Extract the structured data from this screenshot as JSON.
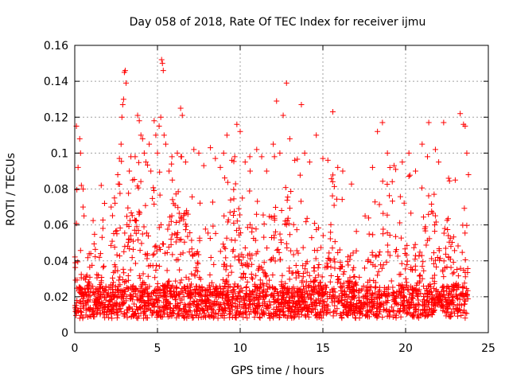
{
  "chart_data": {
    "type": "scatter",
    "title": "Day 058 of 2018, Rate Of TEC Index for receiver ijmu",
    "xlabel": "GPS time / hours",
    "ylabel": "ROTI / TECUs",
    "xlim": [
      0,
      25
    ],
    "ylim": [
      0,
      0.16
    ],
    "xticks": [
      0,
      5,
      10,
      15,
      20,
      25
    ],
    "xtick_labels": [
      "0",
      "5",
      "10",
      "15",
      "20",
      "25"
    ],
    "yticks": [
      0,
      0.02,
      0.04,
      0.06,
      0.08,
      0.1,
      0.12,
      0.14,
      0.16
    ],
    "ytick_labels": [
      "0",
      "0.02",
      "0.04",
      "0.06",
      "0.08",
      "0.1",
      "0.12",
      "0.14",
      "0.16"
    ],
    "grid": true,
    "marker": "+",
    "color": "#ff0000",
    "x_data_range": [
      0,
      23.8
    ],
    "series": [
      {
        "name": "ROTI",
        "points": [
          [
            0.1,
            0.115
          ],
          [
            0.3,
            0.108
          ],
          [
            0.35,
            0.1
          ],
          [
            0.2,
            0.092
          ],
          [
            0.4,
            0.082
          ],
          [
            0.5,
            0.07
          ],
          [
            1.6,
            0.082
          ],
          [
            1.8,
            0.072
          ],
          [
            2.2,
            0.07
          ],
          [
            2.4,
            0.075
          ],
          [
            2.6,
            0.088
          ],
          [
            2.7,
            0.097
          ],
          [
            2.8,
            0.105
          ],
          [
            2.85,
            0.12
          ],
          [
            2.9,
            0.127
          ],
          [
            2.95,
            0.13
          ],
          [
            3.0,
            0.145
          ],
          [
            3.05,
            0.146
          ],
          [
            3.1,
            0.139
          ],
          [
            3.3,
            0.09
          ],
          [
            3.5,
            0.085
          ],
          [
            3.8,
            0.121
          ],
          [
            3.9,
            0.118
          ],
          [
            4.0,
            0.11
          ],
          [
            4.1,
            0.108
          ],
          [
            4.2,
            0.1
          ],
          [
            4.3,
            0.095
          ],
          [
            4.5,
            0.105
          ],
          [
            4.6,
            0.09
          ],
          [
            4.8,
            0.118
          ],
          [
            4.9,
            0.11
          ],
          [
            5.0,
            0.1
          ],
          [
            5.1,
            0.115
          ],
          [
            5.2,
            0.12
          ],
          [
            5.25,
            0.152
          ],
          [
            5.3,
            0.15
          ],
          [
            5.35,
            0.146
          ],
          [
            5.4,
            0.11
          ],
          [
            5.5,
            0.105
          ],
          [
            5.7,
            0.09
          ],
          [
            5.9,
            0.085
          ],
          [
            6.2,
            0.1
          ],
          [
            6.4,
            0.125
          ],
          [
            6.5,
            0.121
          ],
          [
            6.7,
            0.095
          ],
          [
            7.2,
            0.102
          ],
          [
            7.5,
            0.1
          ],
          [
            7.8,
            0.093
          ],
          [
            8.2,
            0.103
          ],
          [
            8.5,
            0.097
          ],
          [
            8.8,
            0.092
          ],
          [
            9.0,
            0.1
          ],
          [
            9.2,
            0.11
          ],
          [
            9.5,
            0.096
          ],
          [
            9.8,
            0.116
          ],
          [
            10.0,
            0.112
          ],
          [
            10.3,
            0.095
          ],
          [
            10.6,
            0.09
          ],
          [
            11.0,
            0.102
          ],
          [
            11.3,
            0.098
          ],
          [
            11.6,
            0.09
          ],
          [
            12.0,
            0.105
          ],
          [
            12.2,
            0.129
          ],
          [
            12.4,
            0.1
          ],
          [
            12.6,
            0.121
          ],
          [
            12.8,
            0.139
          ],
          [
            13.0,
            0.108
          ],
          [
            13.3,
            0.096
          ],
          [
            13.7,
            0.127
          ],
          [
            13.9,
            0.1
          ],
          [
            14.2,
            0.095
          ],
          [
            14.6,
            0.11
          ],
          [
            15.0,
            0.097
          ],
          [
            15.3,
            0.096
          ],
          [
            15.6,
            0.123
          ],
          [
            15.9,
            0.092
          ],
          [
            16.2,
            0.09
          ],
          [
            18.0,
            0.092
          ],
          [
            18.3,
            0.112
          ],
          [
            18.6,
            0.117
          ],
          [
            18.9,
            0.1
          ],
          [
            19.3,
            0.093
          ],
          [
            19.8,
            0.095
          ],
          [
            20.2,
            0.1
          ],
          [
            20.6,
            0.09
          ],
          [
            21.0,
            0.105
          ],
          [
            21.4,
            0.117
          ],
          [
            21.8,
            0.102
          ],
          [
            22.0,
            0.095
          ],
          [
            22.3,
            0.117
          ],
          [
            22.6,
            0.086
          ],
          [
            23.0,
            0.085
          ],
          [
            23.3,
            0.122
          ],
          [
            23.5,
            0.116
          ],
          [
            23.6,
            0.115
          ],
          [
            23.7,
            0.1
          ],
          [
            23.8,
            0.088
          ]
        ]
      }
    ]
  }
}
